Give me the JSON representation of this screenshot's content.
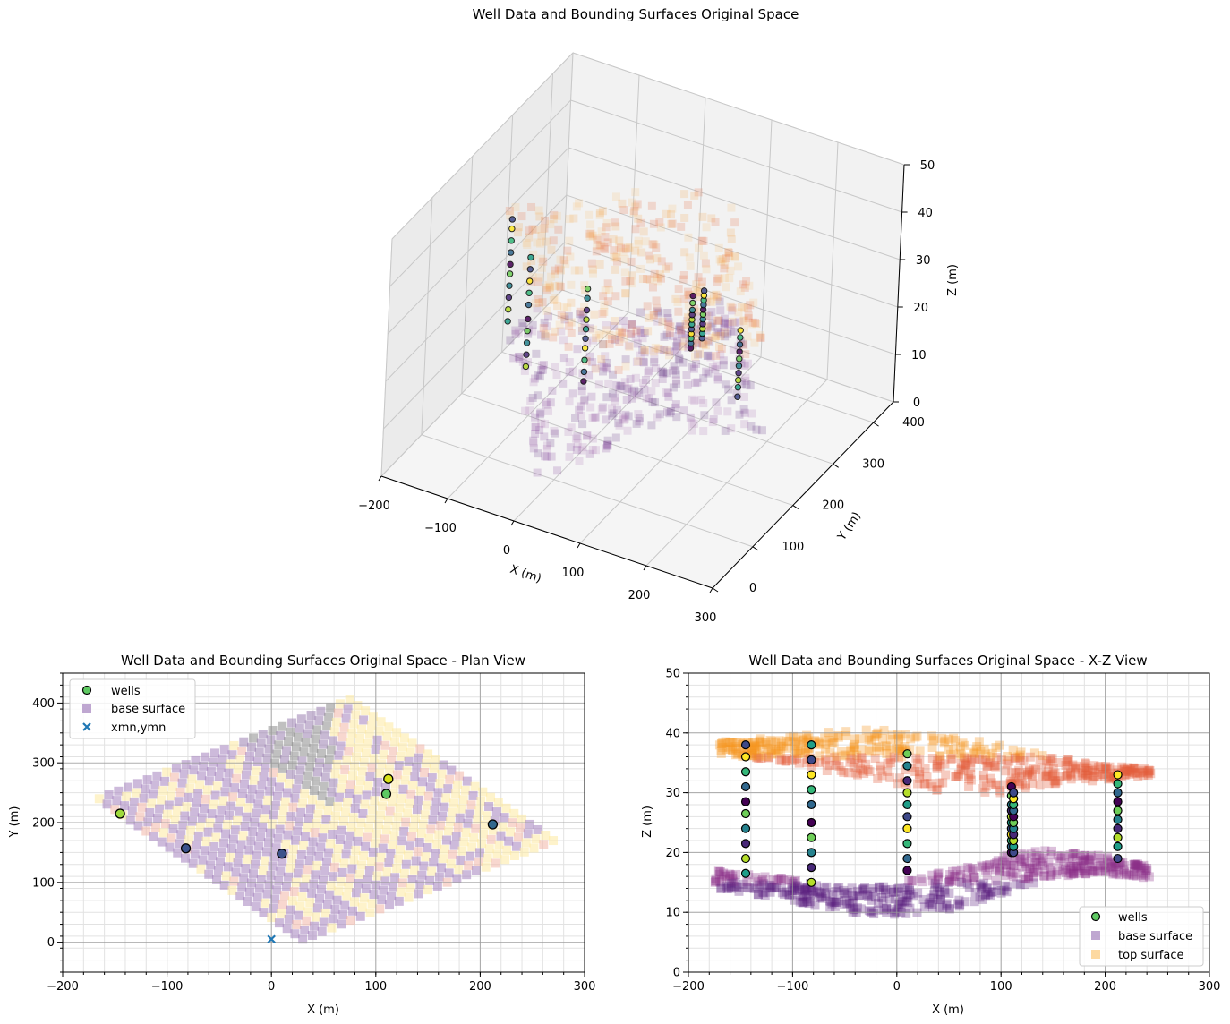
{
  "figure": {
    "suptitle": "Well Data and Bounding Surfaces Original Space"
  },
  "chart_data": [
    {
      "type": "scatter",
      "title": "",
      "projection": "3d",
      "xlabel": "X (m)",
      "ylabel": "Y (m)",
      "zlabel": "Z (m)",
      "xlim": [
        -200,
        300
      ],
      "ylim": [
        0,
        450
      ],
      "zlim": [
        0,
        50
      ],
      "xticks": [
        "−200",
        "−100",
        "0",
        "100",
        "200",
        "300"
      ],
      "yticks": [
        "0",
        "100",
        "200",
        "300",
        "400"
      ],
      "zticks": [
        "0",
        "10",
        "20",
        "30",
        "40",
        "50"
      ],
      "grid": true,
      "series": [
        {
          "name": "wells",
          "marker": "circle",
          "colormap": "viridis",
          "edgecolor": "#000000",
          "wells": [
            {
              "x": -145,
              "y": 215,
              "z": [
                16.5,
                19,
                21.5,
                24,
                26.5,
                28.5,
                31,
                33.5,
                36,
                38
              ]
            },
            {
              "x": -82,
              "y": 157,
              "z": [
                15,
                17.5,
                20,
                22.5,
                25,
                28,
                30.5,
                33,
                35.5,
                38
              ]
            },
            {
              "x": 10,
              "y": 148,
              "z": [
                17,
                19,
                21.5,
                24,
                26,
                28,
                30,
                32,
                34.5,
                36.5
              ]
            },
            {
              "x": 110,
              "y": 248,
              "z": [
                20,
                21,
                22,
                23,
                24,
                25,
                26,
                27,
                28,
                29.5,
                31
              ]
            },
            {
              "x": 112,
              "y": 273,
              "z": [
                20,
                21,
                22,
                23,
                24,
                25,
                26,
                27,
                28,
                29,
                30
              ]
            },
            {
              "x": 212,
              "y": 197,
              "z": [
                19,
                21,
                22.5,
                24,
                25.5,
                27,
                28.5,
                30,
                31.5,
                33
              ]
            }
          ]
        },
        {
          "name": "base surface",
          "marker": "square",
          "colormap": "magma",
          "alpha": 0.3,
          "z_range": [
            9,
            20
          ]
        },
        {
          "name": "top surface",
          "marker": "square",
          "colormap": "inferno",
          "alpha": 0.3,
          "z_range": [
            30,
            40.5
          ]
        }
      ]
    },
    {
      "type": "scatter",
      "title": "Well Data and Bounding Surfaces Original Space - Plan View",
      "xlabel": "X (m)",
      "ylabel": "Y (m)",
      "xlim": [
        -200,
        300
      ],
      "ylim": [
        -50,
        450
      ],
      "xticks": [
        "−200",
        "−100",
        "0",
        "100",
        "200",
        "300"
      ],
      "yticks": [
        "0",
        "100",
        "200",
        "300",
        "400"
      ],
      "grid": true,
      "minor_grid": true,
      "legend": {
        "placement": "upper-left",
        "entries": [
          "wells",
          "base surface",
          "xmn,ymn"
        ]
      },
      "series": [
        {
          "name": "wells",
          "marker": "circle",
          "points": [
            {
              "x": -145,
              "y": 215,
              "color": "#9fda3a"
            },
            {
              "x": -82,
              "y": 157,
              "color": "#3b528b"
            },
            {
              "x": 10,
              "y": 148,
              "color": "#3b528b"
            },
            {
              "x": 110,
              "y": 248,
              "color": "#5ec962"
            },
            {
              "x": 112,
              "y": 273,
              "color": "#d8e219"
            },
            {
              "x": 212,
              "y": 197,
              "color": "#31688e"
            }
          ]
        },
        {
          "name": "base surface",
          "marker": "square",
          "color": "#8b5fa8",
          "alpha": 0.35,
          "footprint_corners": [
            [
              -165,
              240
            ],
            [
              75,
              405
            ],
            [
              245,
              175
            ],
            [
              30,
              5
            ]
          ]
        },
        {
          "name": "xmn,ymn",
          "marker": "x",
          "color": "#1f77b4",
          "points": [
            {
              "x": 0,
              "y": 5
            }
          ]
        }
      ]
    },
    {
      "type": "scatter",
      "title": "Well Data and Bounding Surfaces Original Space - X-Z View",
      "xlabel": "X (m)",
      "ylabel": "Z (m)",
      "xlim": [
        -200,
        300
      ],
      "ylim": [
        0,
        50
      ],
      "xticks": [
        "−200",
        "−100",
        "0",
        "100",
        "200",
        "300"
      ],
      "yticks": [
        "0",
        "10",
        "20",
        "30",
        "40",
        "50"
      ],
      "grid": true,
      "minor_grid": true,
      "legend": {
        "placement": "lower-right",
        "entries": [
          "wells",
          "base surface",
          "top surface"
        ]
      },
      "series": [
        {
          "name": "wells",
          "marker": "circle",
          "colormap": "viridis"
        },
        {
          "name": "base surface",
          "marker": "square",
          "color": "#6a2c8a",
          "alpha": 0.35,
          "profile": {
            "x": [
              -175,
              -100,
              -50,
              0,
              50,
              100,
              150,
              200,
              245
            ],
            "z_low": [
              14,
              12,
              10,
              9.5,
              10.5,
              13,
              16,
              16.5,
              15.5
            ],
            "z_high": [
              17,
              15.5,
              14,
              15,
              17,
              19.5,
              20.5,
              19.5,
              17.5
            ]
          }
        },
        {
          "name": "top surface",
          "marker": "square",
          "color": "#f79b2a",
          "alpha": 0.35,
          "profile": {
            "x": [
              -170,
              -100,
              -50,
              0,
              50,
              100,
              150,
              200,
              245
            ],
            "z_low": [
              36.5,
              35,
              33,
              31.5,
              30,
              30,
              31.5,
              32,
              33
            ],
            "z_high": [
              38.5,
              39.5,
              40.5,
              40.5,
              39.5,
              38,
              36,
              34.5,
              34
            ]
          }
        }
      ]
    }
  ]
}
